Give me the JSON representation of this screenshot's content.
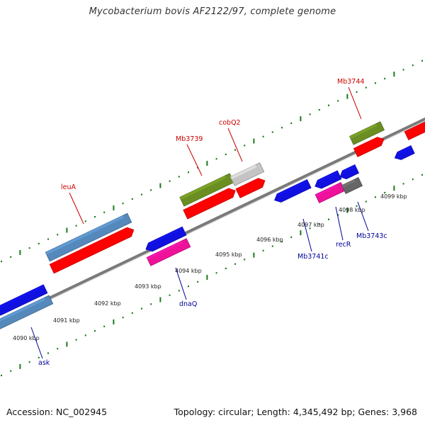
{
  "title": "Mycobacterium bovis AF2122/97, complete genome",
  "footer": {
    "accession": "Accession: NC_002945",
    "stats": "Topology: circular; Length: 4,345,492 bp; Genes: 3,968"
  },
  "colors": {
    "backbone": "#7a7a7a",
    "tick": "#1a7a1a",
    "label_forward": "#cc0000",
    "label_reverse": "#000099",
    "red": "#ff0000",
    "blue": "#1010e0",
    "steelblue": "#5588bb",
    "olive": "#6b8e23",
    "pink": "#ee1199",
    "lightgray": "#c4c4c4",
    "darkgray": "#666666"
  },
  "kbp_labels": [
    "4090 kbp",
    "4091 kbp",
    "4092 kbp",
    "4093 kbp",
    "4094 kbp",
    "4095 kbp",
    "4096 kbp",
    "4097 kbp",
    "4098 kbp",
    "4099 kbp"
  ],
  "gene_labels": [
    {
      "text": "leuA",
      "strand": "forward"
    },
    {
      "text": "Mb3739",
      "strand": "forward"
    },
    {
      "text": "cobQ2",
      "strand": "forward"
    },
    {
      "text": "Mb3744",
      "strand": "forward"
    },
    {
      "text": "ask",
      "strand": "reverse"
    },
    {
      "text": "dnaQ",
      "strand": "reverse"
    },
    {
      "text": "Mb3741c",
      "strand": "reverse"
    },
    {
      "text": "recR",
      "strand": "reverse"
    },
    {
      "text": "Mb3743c",
      "strand": "reverse"
    }
  ],
  "features": [
    {
      "color": "blue",
      "shape": "arrow-left"
    },
    {
      "color": "steelblue",
      "shape": "box"
    },
    {
      "color": "steelblue",
      "shape": "box"
    },
    {
      "color": "red",
      "shape": "arrow-right"
    },
    {
      "color": "blue",
      "shape": "arrow-left"
    },
    {
      "color": "pink",
      "shape": "box"
    },
    {
      "color": "olive",
      "shape": "box"
    },
    {
      "color": "lightgray",
      "shape": "box"
    },
    {
      "color": "red",
      "shape": "arrow-right"
    },
    {
      "color": "red",
      "shape": "arrow-right"
    },
    {
      "color": "blue",
      "shape": "arrow-left"
    },
    {
      "color": "blue",
      "shape": "arrow-left"
    },
    {
      "color": "blue",
      "shape": "arrow-left"
    },
    {
      "color": "pink",
      "shape": "box"
    },
    {
      "color": "darkgray",
      "shape": "box"
    },
    {
      "color": "olive",
      "shape": "box"
    },
    {
      "color": "red",
      "shape": "arrow-right"
    },
    {
      "color": "blue",
      "shape": "arrow-left"
    },
    {
      "color": "red",
      "shape": "arrow-right"
    }
  ]
}
